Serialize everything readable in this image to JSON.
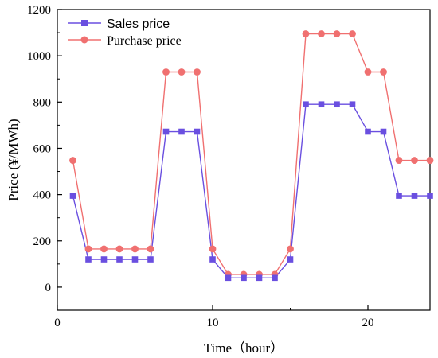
{
  "chart_data": {
    "type": "line",
    "xlabel": "Time（hour）",
    "ylabel": "Price (¥/MWh)",
    "xlim": [
      0,
      24
    ],
    "ylim": [
      -100,
      1200
    ],
    "x_ticks": [
      0,
      10,
      20
    ],
    "y_ticks": [
      0,
      200,
      400,
      600,
      800,
      1000,
      1200
    ],
    "grid": false,
    "legend_position": "top-left",
    "x": [
      1,
      2,
      3,
      4,
      5,
      6,
      7,
      8,
      9,
      10,
      11,
      12,
      13,
      14,
      15,
      16,
      17,
      18,
      19,
      20,
      21,
      22,
      23,
      24
    ],
    "series": [
      {
        "name": "Sales price",
        "color": "#6a4fe0",
        "marker": "square",
        "values": [
          395,
          120,
          120,
          120,
          120,
          120,
          672,
          672,
          672,
          120,
          40,
          40,
          40,
          40,
          120,
          790,
          790,
          790,
          790,
          672,
          672,
          395,
          395,
          395
        ]
      },
      {
        "name": "Purchase price",
        "color": "#f07070",
        "marker": "circle",
        "values": [
          548,
          165,
          165,
          165,
          165,
          165,
          930,
          930,
          930,
          165,
          55,
          55,
          55,
          55,
          165,
          1095,
          1095,
          1095,
          1095,
          930,
          930,
          548,
          548,
          548
        ]
      }
    ]
  }
}
